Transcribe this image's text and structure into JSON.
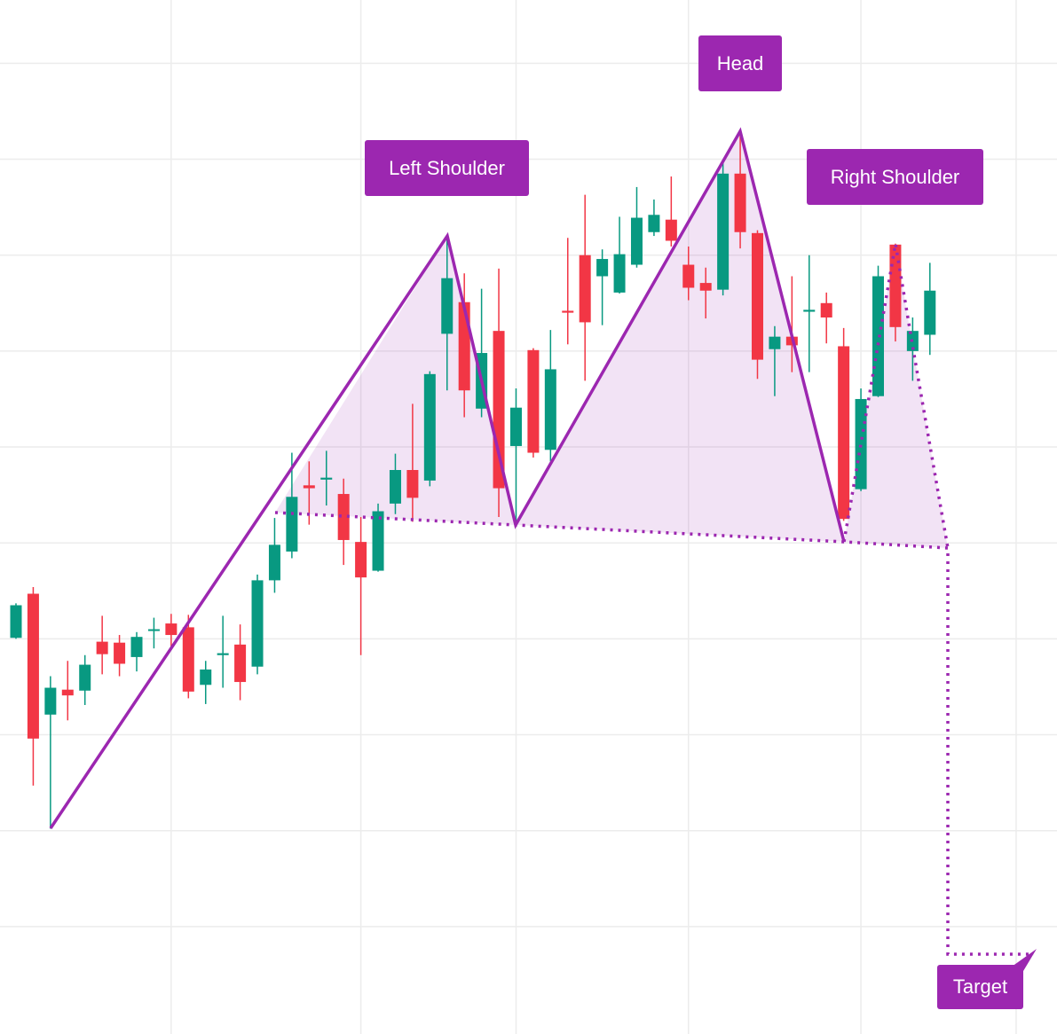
{
  "chart_data": {
    "type": "candlestick",
    "annotations": [
      "Left Shoulder",
      "Head",
      "Right Shoulder",
      "Target"
    ],
    "up_color": "#089981",
    "down_color": "#f23645",
    "ylim": [
      -0.12,
      10.66
    ],
    "yticks": [
      1,
      2,
      3,
      4,
      5,
      6,
      7,
      8,
      9,
      10
    ],
    "xticks": [
      9,
      20,
      29,
      39,
      49,
      58
    ],
    "grid": true,
    "open": [
      4.01,
      4.47,
      3.21,
      3.47,
      3.46,
      3.97,
      3.96,
      3.81,
      4.09,
      4.16,
      4.12,
      3.52,
      3.83,
      3.94,
      3.71,
      4.61,
      4.91,
      5.6,
      5.66,
      5.51,
      5.01,
      4.71,
      5.41,
      5.76,
      5.65,
      7.18,
      7.51,
      6.4,
      7.21,
      6.01,
      7.01,
      5.97,
      7.42,
      8.0,
      7.78,
      7.61,
      7.9,
      8.24,
      8.37,
      7.9,
      7.71,
      7.64,
      8.85,
      8.23,
      7.02,
      7.15,
      7.41,
      7.5,
      7.05,
      5.56,
      6.53,
      8.11,
      7.0,
      7.17
    ],
    "high": [
      4.37,
      4.54,
      3.61,
      3.77,
      3.83,
      4.24,
      4.04,
      4.07,
      4.22,
      4.26,
      4.25,
      3.77,
      4.24,
      4.15,
      4.67,
      5.26,
      5.94,
      5.85,
      5.96,
      5.67,
      5.27,
      5.41,
      5.93,
      6.45,
      6.79,
      8.19,
      7.81,
      7.65,
      7.86,
      6.61,
      7.03,
      7.22,
      8.18,
      8.63,
      8.06,
      8.4,
      8.71,
      8.58,
      8.82,
      8.09,
      7.87,
      8.99,
      9.25,
      8.26,
      7.26,
      7.78,
      8.0,
      7.61,
      7.24,
      6.61,
      7.89,
      8.12,
      7.35,
      7.92
    ],
    "low": [
      4.0,
      2.47,
      2.02,
      3.15,
      3.31,
      3.63,
      3.61,
      3.66,
      3.9,
      3.91,
      3.38,
      3.32,
      3.49,
      3.36,
      3.63,
      4.48,
      4.84,
      5.19,
      5.39,
      4.77,
      3.83,
      4.7,
      5.3,
      5.22,
      5.59,
      6.59,
      6.31,
      6.31,
      5.27,
      5.2,
      5.89,
      5.85,
      7.07,
      6.69,
      7.27,
      7.6,
      7.87,
      8.2,
      8.09,
      7.53,
      7.34,
      7.58,
      8.07,
      6.71,
      6.53,
      6.78,
      6.78,
      7.08,
      5.23,
      5.54,
      6.52,
      7.1,
      6.69,
      6.96
    ],
    "close": [
      4.35,
      2.96,
      3.49,
      3.41,
      3.73,
      3.84,
      3.74,
      4.02,
      4.1,
      4.04,
      3.45,
      3.68,
      3.85,
      3.55,
      4.61,
      4.98,
      5.48,
      5.57,
      5.68,
      5.03,
      4.64,
      5.33,
      5.76,
      5.47,
      6.76,
      7.76,
      6.59,
      6.98,
      5.57,
      6.41,
      5.94,
      6.81,
      7.4,
      7.3,
      7.96,
      8.01,
      8.39,
      8.42,
      8.15,
      7.66,
      7.63,
      8.85,
      8.24,
      6.91,
      7.15,
      7.06,
      7.43,
      7.35,
      5.25,
      6.5,
      7.78,
      7.25,
      7.21,
      7.63
    ]
  }
}
